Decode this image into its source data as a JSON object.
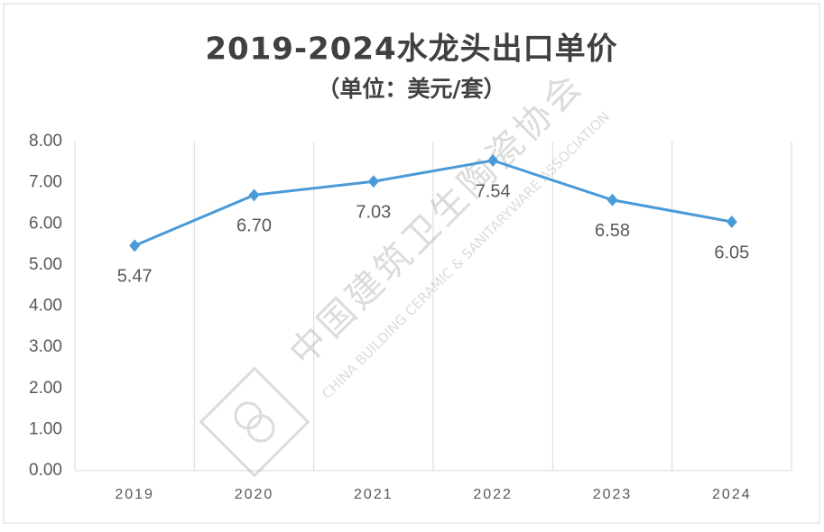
{
  "chart_data": {
    "type": "line",
    "title": "2019-2024水龙头出口单价",
    "subtitle": "（单位：美元/套）",
    "categories": [
      "2019",
      "2020",
      "2021",
      "2022",
      "2023",
      "2024"
    ],
    "values": [
      5.47,
      6.7,
      7.03,
      7.54,
      6.58,
      6.05
    ],
    "value_labels": [
      "5.47",
      "6.70",
      "7.03",
      "7.54",
      "6.58",
      "6.05"
    ],
    "color": "#4a9ad8",
    "ylim": [
      0,
      8
    ],
    "yticks": [
      {
        "value": 0,
        "label": "0.00"
      },
      {
        "value": 1,
        "label": "1.00"
      },
      {
        "value": 2,
        "label": "2.00"
      },
      {
        "value": 3,
        "label": "3.00"
      },
      {
        "value": 4,
        "label": "4.00"
      },
      {
        "value": 5,
        "label": "5.00"
      },
      {
        "value": 6,
        "label": "6.00"
      },
      {
        "value": 7,
        "label": "7.00"
      },
      {
        "value": 8,
        "label": "8.00"
      }
    ],
    "watermark_cn": "中国建筑卫生陶瓷协会",
    "watermark_en": "CHINA BUILDING CERAMIC & SANITARYWARE ASSOCIATION"
  }
}
